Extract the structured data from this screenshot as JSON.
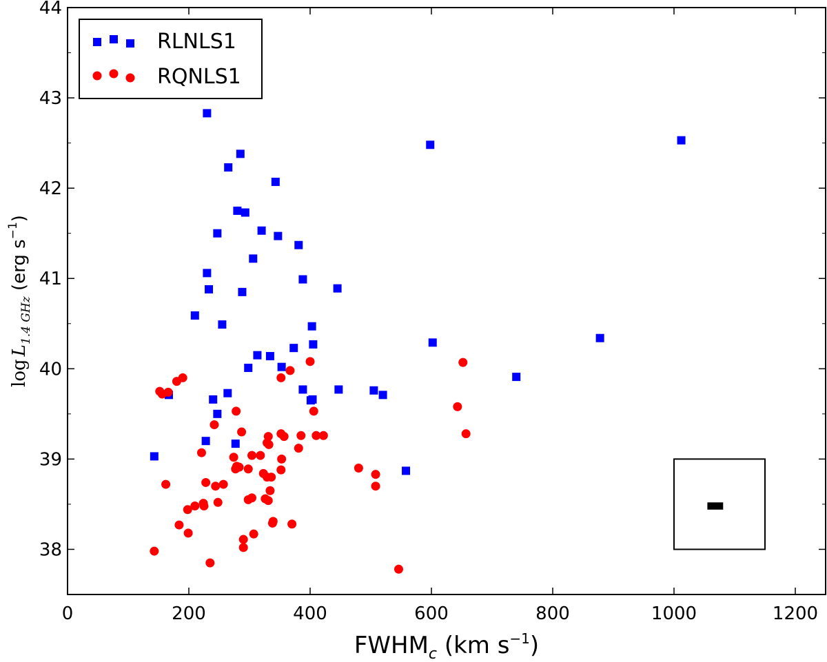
{
  "chart_data": {
    "type": "scatter",
    "xlabel": {
      "main": "FWHM",
      "sub": "c",
      "unit_open": " (km s",
      "unit_exp": "−1",
      "unit_close": ")"
    },
    "ylabel": {
      "prefix": "log",
      "var": "L",
      "sub": "1.4 GHz",
      "unit_open": " (erg s",
      "unit_exp": "−1",
      "unit_close": ")"
    },
    "xlim": [
      0,
      1250
    ],
    "ylim": [
      37.5,
      44
    ],
    "xticks": [
      "0",
      "200",
      "400",
      "600",
      "800",
      "1000",
      "1200"
    ],
    "yticks": [
      "38",
      "39",
      "40",
      "41",
      "42",
      "43",
      "44"
    ],
    "legend_position": "top-left",
    "series": [
      {
        "name": "RLNLS1",
        "marker": "square",
        "color": "#0000ff",
        "points": [
          [
            230,
            42.83
          ],
          [
            285,
            42.38
          ],
          [
            265,
            42.23
          ],
          [
            343,
            42.07
          ],
          [
            598,
            42.48
          ],
          [
            1012,
            42.53
          ],
          [
            280,
            41.75
          ],
          [
            293,
            41.73
          ],
          [
            247,
            41.5
          ],
          [
            320,
            41.53
          ],
          [
            347,
            41.47
          ],
          [
            381,
            41.37
          ],
          [
            306,
            41.22
          ],
          [
            230,
            41.06
          ],
          [
            233,
            40.88
          ],
          [
            388,
            40.99
          ],
          [
            288,
            40.85
          ],
          [
            445,
            40.89
          ],
          [
            210,
            40.59
          ],
          [
            255,
            40.49
          ],
          [
            403,
            40.47
          ],
          [
            405,
            40.27
          ],
          [
            602,
            40.29
          ],
          [
            878,
            40.34
          ],
          [
            313,
            40.15
          ],
          [
            334,
            40.14
          ],
          [
            373,
            40.23
          ],
          [
            298,
            40.01
          ],
          [
            353,
            40.02
          ],
          [
            740,
            39.91
          ],
          [
            167,
            39.71
          ],
          [
            264,
            39.73
          ],
          [
            240,
            39.66
          ],
          [
            388,
            39.77
          ],
          [
            447,
            39.77
          ],
          [
            505,
            39.76
          ],
          [
            520,
            39.71
          ],
          [
            401,
            39.65
          ],
          [
            404,
            39.66
          ],
          [
            247,
            39.5
          ],
          [
            228,
            39.2
          ],
          [
            277,
            39.17
          ],
          [
            143,
            39.03
          ],
          [
            558,
            38.87
          ]
        ]
      },
      {
        "name": "RQNLS1",
        "marker": "circle",
        "color": "#ff0000",
        "points": [
          [
            400,
            40.08
          ],
          [
            652,
            40.07
          ],
          [
            367,
            39.98
          ],
          [
            190,
            39.9
          ],
          [
            180,
            39.86
          ],
          [
            352,
            39.9
          ],
          [
            152,
            39.75
          ],
          [
            156,
            39.72
          ],
          [
            166,
            39.74
          ],
          [
            643,
            39.58
          ],
          [
            278,
            39.53
          ],
          [
            406,
            39.53
          ],
          [
            242,
            39.38
          ],
          [
            287,
            39.3
          ],
          [
            657,
            39.28
          ],
          [
            331,
            39.25
          ],
          [
            352,
            39.28
          ],
          [
            357,
            39.25
          ],
          [
            385,
            39.26
          ],
          [
            410,
            39.26
          ],
          [
            422,
            39.26
          ],
          [
            329,
            39.18
          ],
          [
            332,
            39.16
          ],
          [
            381,
            39.12
          ],
          [
            221,
            39.07
          ],
          [
            274,
            39.02
          ],
          [
            304,
            39.04
          ],
          [
            318,
            39.04
          ],
          [
            353,
            39.0
          ],
          [
            279,
            38.92
          ],
          [
            283,
            38.91
          ],
          [
            298,
            38.89
          ],
          [
            277,
            38.89
          ],
          [
            352,
            38.88
          ],
          [
            480,
            38.9
          ],
          [
            323,
            38.84
          ],
          [
            329,
            38.8
          ],
          [
            336,
            38.8
          ],
          [
            508,
            38.83
          ],
          [
            228,
            38.74
          ],
          [
            162,
            38.72
          ],
          [
            257,
            38.72
          ],
          [
            244,
            38.7
          ],
          [
            508,
            38.7
          ],
          [
            334,
            38.65
          ],
          [
            298,
            38.55
          ],
          [
            304,
            38.57
          ],
          [
            326,
            38.56
          ],
          [
            331,
            38.54
          ],
          [
            248,
            38.52
          ],
          [
            224,
            38.51
          ],
          [
            225,
            38.48
          ],
          [
            210,
            38.48
          ],
          [
            198,
            38.44
          ],
          [
            339,
            38.31
          ],
          [
            338,
            38.29
          ],
          [
            370,
            38.28
          ],
          [
            184,
            38.27
          ],
          [
            199,
            38.18
          ],
          [
            307,
            38.17
          ],
          [
            290,
            38.11
          ],
          [
            290,
            38.02
          ],
          [
            143,
            37.98
          ],
          [
            235,
            37.85
          ],
          [
            546,
            37.78
          ]
        ]
      }
    ],
    "annotation": {
      "description": "error-bar inset box",
      "x": 1068,
      "y": 38.48,
      "xerr": 13,
      "yerr": 0.04,
      "box_x": [
        1000,
        1150
      ],
      "box_y": [
        38.0,
        39.0
      ]
    }
  }
}
